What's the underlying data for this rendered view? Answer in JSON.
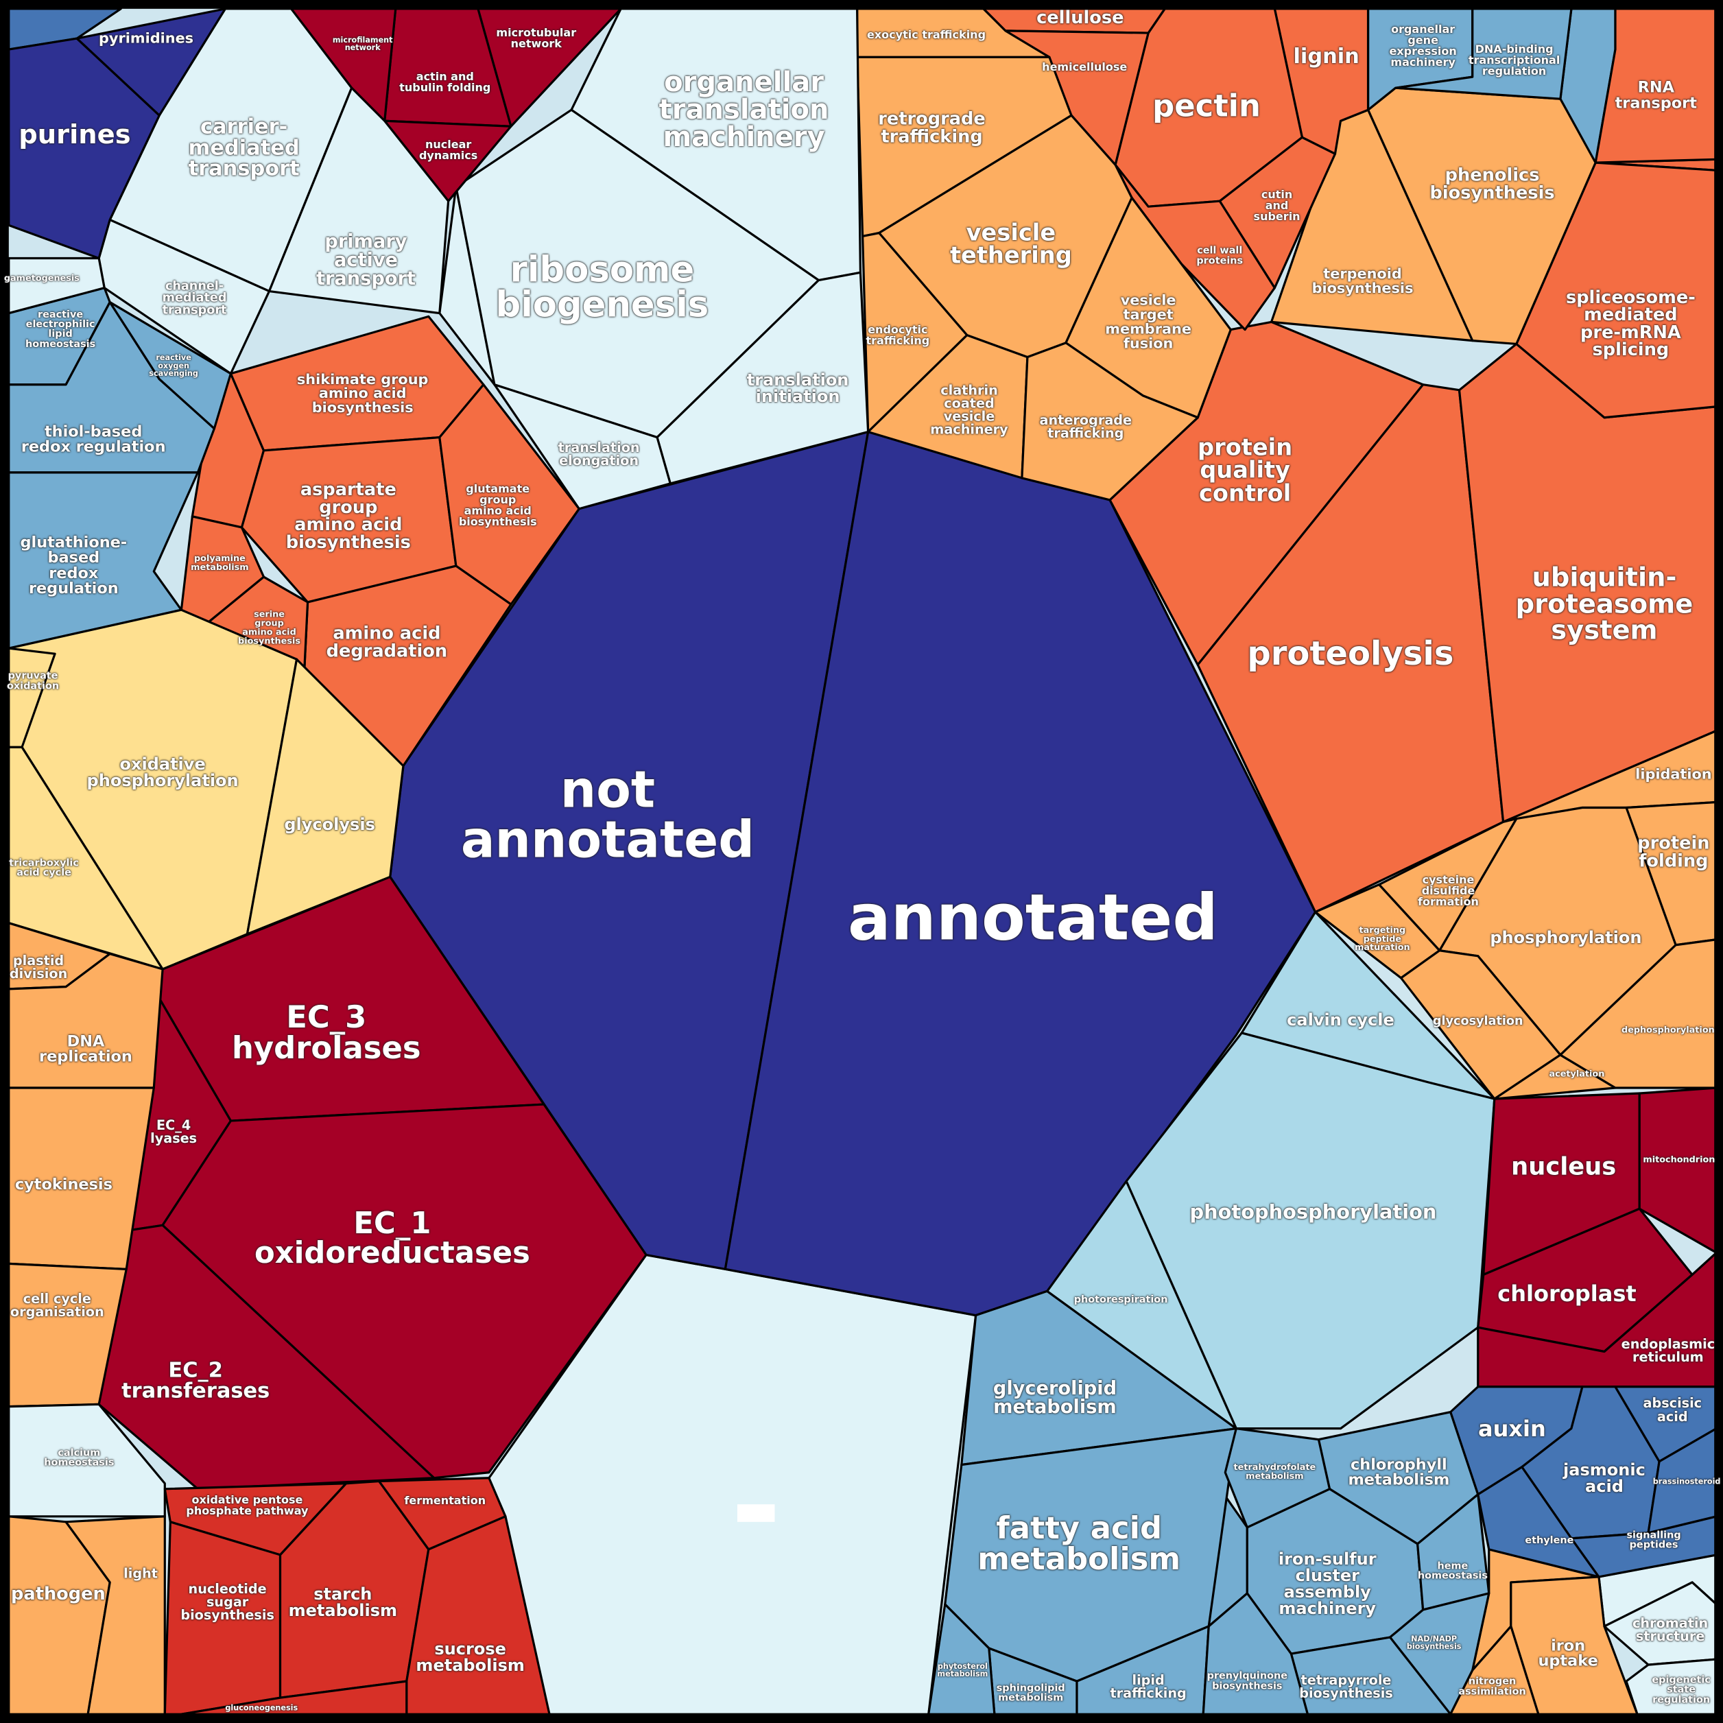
{
  "cells": [
    {
      "label": "not\nannotated"
    },
    {
      "label": "annotated"
    },
    {
      "label": "protein\nquality\ncontrol"
    },
    {
      "label": "proteolysis"
    },
    {
      "label": "ubiquitin-\nproteasome\nsystem"
    },
    {
      "label": "spliceosome-\nmediated\npre-mRNA\nsplicing"
    },
    {
      "label": "RNA\ntransport"
    },
    {
      "label": "phenolics\nbiosynthesis"
    },
    {
      "label": "terpenoid\nbiosynthesis"
    },
    {
      "label": "organellar\ngene\nexpression\nmachinery"
    },
    {
      "label": "DNA-binding\ntranscriptional\nregulation"
    },
    {
      "label": "lignin"
    },
    {
      "label": "pectin"
    },
    {
      "label": "cellulose"
    },
    {
      "label": "hemicellulose"
    },
    {
      "label": "cutin\nand\nsuberin"
    },
    {
      "label": "cell wall\nproteins"
    },
    {
      "label": "exocytic trafficking"
    },
    {
      "label": "retrograde\ntrafficking"
    },
    {
      "label": "vesicle\ntethering"
    },
    {
      "label": "endocytic\ntrafficking"
    },
    {
      "label": "vesicle\ntarget\nmembrane\nfusion"
    },
    {
      "label": "clathrin\ncoated\nvesicle\nmachinery"
    },
    {
      "label": "anterograde\ntrafficking"
    },
    {
      "label": "organellar\ntranslation\nmachinery"
    },
    {
      "label": "ribosome\nbiogenesis"
    },
    {
      "label": "translation\ninitiation"
    },
    {
      "label": "translation\nelongation"
    },
    {
      "label": "microtubular\nnetwork"
    },
    {
      "label": "actin and\ntubulin folding"
    },
    {
      "label": "nuclear\ndynamics"
    },
    {
      "label": "microfilament\nnetwork"
    },
    {
      "label": "carrier-\nmediated\ntransport"
    },
    {
      "label": "primary\nactive\ntransport"
    },
    {
      "label": "channel-\nmediated\ntransport"
    },
    {
      "label": "purines"
    },
    {
      "label": "pyrimidines"
    },
    {
      "label": "reactive\nelectrophilic\nlipid\nhomeostasis"
    },
    {
      "label": "thiol-based\nredox regulation"
    },
    {
      "label": "glutathione-\nbased\nredox\nregulation"
    },
    {
      "label": "reactive\noxygen\nscavenging"
    },
    {
      "label": "shikimate group\namino acid\nbiosynthesis"
    },
    {
      "label": "aspartate\ngroup\namino acid\nbiosynthesis"
    },
    {
      "label": "glutamate\ngroup\namino acid\nbiosynthesis"
    },
    {
      "label": "amino acid\ndegradation"
    },
    {
      "label": "serine\ngroup\namino acid\nbiosynthesis"
    },
    {
      "label": "polyamine\nmetabolism"
    },
    {
      "label": "oxidative\nphosphorylation"
    },
    {
      "label": "glycolysis"
    },
    {
      "label": "pyruvate\noxidation"
    },
    {
      "label": "tricarboxylic\nacid cycle"
    },
    {
      "label": "EC_3\nhydrolases"
    },
    {
      "label": "EC_4\nlyases"
    },
    {
      "label": "EC_1\noxidoreductases"
    },
    {
      "label": "EC_2\ntransferases"
    },
    {
      "label": "plastid\ndivision"
    },
    {
      "label": "DNA\nreplication"
    },
    {
      "label": "cytokinesis"
    },
    {
      "label": "cell cycle\norganisation"
    },
    {
      "label": "calcium\nhomeostasis"
    },
    {
      "label": "pathogen"
    },
    {
      "label": "light"
    },
    {
      "label": "oxidative pentose\nphosphate pathway"
    },
    {
      "label": "nucleotide\nsugar\nbiosynthesis"
    },
    {
      "label": "starch\nmetabolism"
    },
    {
      "label": "fermentation"
    },
    {
      "label": "sucrose\nmetabolism"
    },
    {
      "label": "gluconeogenesis"
    },
    {
      "label": "glycerolipid\nmetabolism"
    },
    {
      "label": "fatty acid\nmetabolism"
    },
    {
      "label": "sphingolipid\nmetabolism"
    },
    {
      "label": "lipid\ntrafficking"
    },
    {
      "label": "phytosterol\nmetabolism"
    },
    {
      "label": "calvin cycle"
    },
    {
      "label": "photophosphorylation"
    },
    {
      "label": "photorespiration"
    },
    {
      "label": "nucleus"
    },
    {
      "label": "mitochondrion"
    },
    {
      "label": "chloroplast"
    },
    {
      "label": "endoplasmic\nreticulum"
    },
    {
      "label": "auxin"
    },
    {
      "label": "jasmonic\nacid"
    },
    {
      "label": "abscisic\nacid"
    },
    {
      "label": "ethylene"
    },
    {
      "label": "signalling\npeptides"
    },
    {
      "label": "brassinosteroid"
    },
    {
      "label": "chlorophyll\nmetabolism"
    },
    {
      "label": "iron-sulfur\ncluster\nassembly\nmachinery"
    },
    {
      "label": "tetrahydrofolate\nmetabolism"
    },
    {
      "label": "heme\nhomeostasis"
    },
    {
      "label": "NAD/NADP\nbiosynthesis"
    },
    {
      "label": "tetrapyrrole\nbiosynthesis"
    },
    {
      "label": "prenylquinone\nbiosynthesis"
    },
    {
      "label": "iron\nuptake"
    },
    {
      "label": "nitrogen\nassimilation"
    },
    {
      "label": "chromatin\nstructure"
    },
    {
      "label": "epigenetic\nstate\nregulation"
    },
    {
      "label": "lipidation"
    },
    {
      "label": "protein\nfolding"
    },
    {
      "label": "phosphorylation"
    },
    {
      "label": "cysteine\ndisulfide\nformation"
    },
    {
      "label": "targeting\npeptide\nmaturation"
    },
    {
      "label": "glycosylation"
    },
    {
      "label": "acetylation"
    },
    {
      "label": "dephosphorylation"
    },
    {
      "label": "gametogenesis"
    }
  ]
}
